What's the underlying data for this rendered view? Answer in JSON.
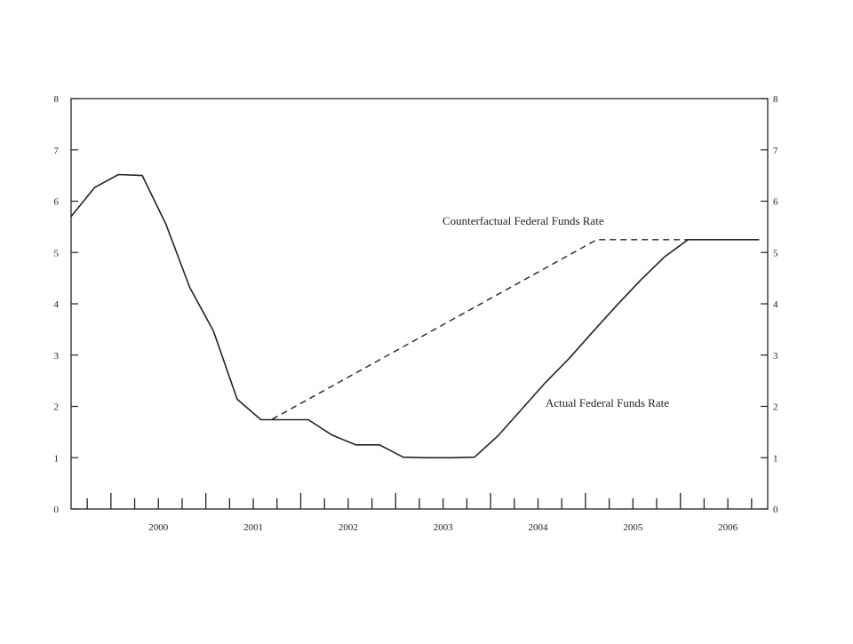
{
  "chart_data": {
    "type": "line",
    "xlim": [
      1999.58,
      2006.92
    ],
    "ylim": [
      0,
      8
    ],
    "yticks": [
      0,
      1,
      2,
      3,
      4,
      5,
      6,
      7,
      8
    ],
    "ytick_labels": [
      "0",
      "1",
      "2",
      "3",
      "4",
      "5",
      "6",
      "7",
      "8"
    ],
    "year_labels": [
      "2000",
      "2001",
      "2002",
      "2003",
      "2004",
      "2005",
      "2006"
    ],
    "grid": false,
    "series": [
      {
        "name": "Actual Federal Funds Rate",
        "style": "solid",
        "color": "#222222",
        "x": [
          1999.58,
          1999.83,
          2000.08,
          2000.33,
          2000.58,
          2000.83,
          2001.08,
          2001.33,
          2001.58,
          2001.83,
          2002.08,
          2002.33,
          2002.58,
          2002.83,
          2003.08,
          2003.33,
          2003.58,
          2003.83,
          2004.08,
          2004.33,
          2004.58,
          2004.83,
          2005.08,
          2005.33,
          2005.58,
          2005.83,
          2006.08,
          2006.33,
          2006.58,
          2006.83
        ],
        "y": [
          5.7,
          6.27,
          6.52,
          6.5,
          5.55,
          4.32,
          3.47,
          2.14,
          1.74,
          1.74,
          1.74,
          1.44,
          1.25,
          1.25,
          1.01,
          1.0,
          1.0,
          1.01,
          1.43,
          1.95,
          2.47,
          2.94,
          3.46,
          3.97,
          4.46,
          4.91,
          5.25,
          5.25,
          5.25,
          5.25
        ]
      },
      {
        "name": "Counterfactual Federal Funds Rate",
        "style": "dashed",
        "color": "#222222",
        "x": [
          2001.7,
          2005.12,
          2006.83
        ],
        "y": [
          1.75,
          5.25,
          5.25
        ]
      }
    ]
  }
}
